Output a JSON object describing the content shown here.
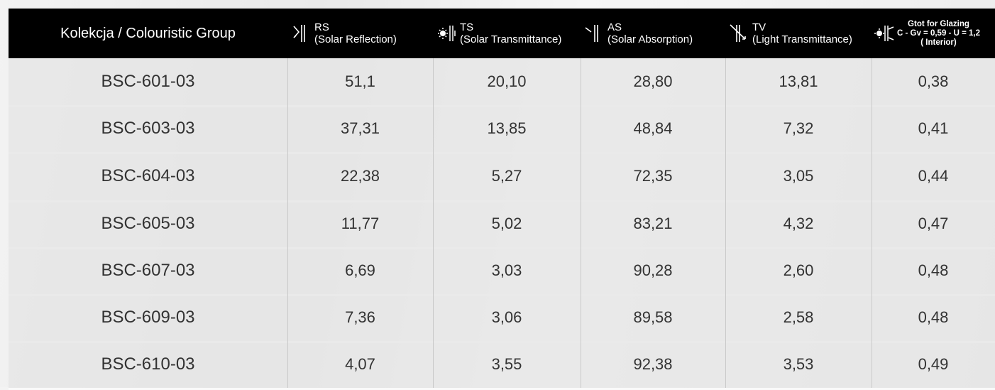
{
  "header": {
    "columns": [
      {
        "lines": [
          "Kolekcja /  Colouristic Group"
        ]
      },
      {
        "lines": [
          "RS",
          "(Solar Reflection)"
        ]
      },
      {
        "lines": [
          "TS",
          "(Solar Transmittance)"
        ]
      },
      {
        "lines": [
          "AS",
          "(Solar Absorption)"
        ]
      },
      {
        "lines": [
          "TV",
          "(Light Transmittance)"
        ]
      },
      {
        "lines": [
          "Gtot for Glazing",
          "C - Gv = 0,59 - U = 1,2",
          "( Interior)"
        ]
      }
    ]
  },
  "table": {
    "rows": [
      [
        "BSC-601-03",
        "51,1",
        "20,10",
        "28,80",
        "13,81",
        "0,38"
      ],
      [
        "BSC-603-03",
        "37,31",
        "13,85",
        "48,84",
        "7,32",
        "0,41"
      ],
      [
        "BSC-604-03",
        "22,38",
        "5,27",
        "72,35",
        "3,05",
        "0,44"
      ],
      [
        "BSC-605-03",
        "11,77",
        "5,02",
        "83,21",
        "4,32",
        "0,47"
      ],
      [
        "BSC-607-03",
        "6,69",
        "3,03",
        "90,28",
        "2,60",
        "0,48"
      ],
      [
        "BSC-609-03",
        "7,36",
        "3,06",
        "89,58",
        "2,58",
        "0,48"
      ],
      [
        "BSC-610-03",
        "4,07",
        "3,55",
        "92,38",
        "3,53",
        "0,49"
      ]
    ]
  }
}
